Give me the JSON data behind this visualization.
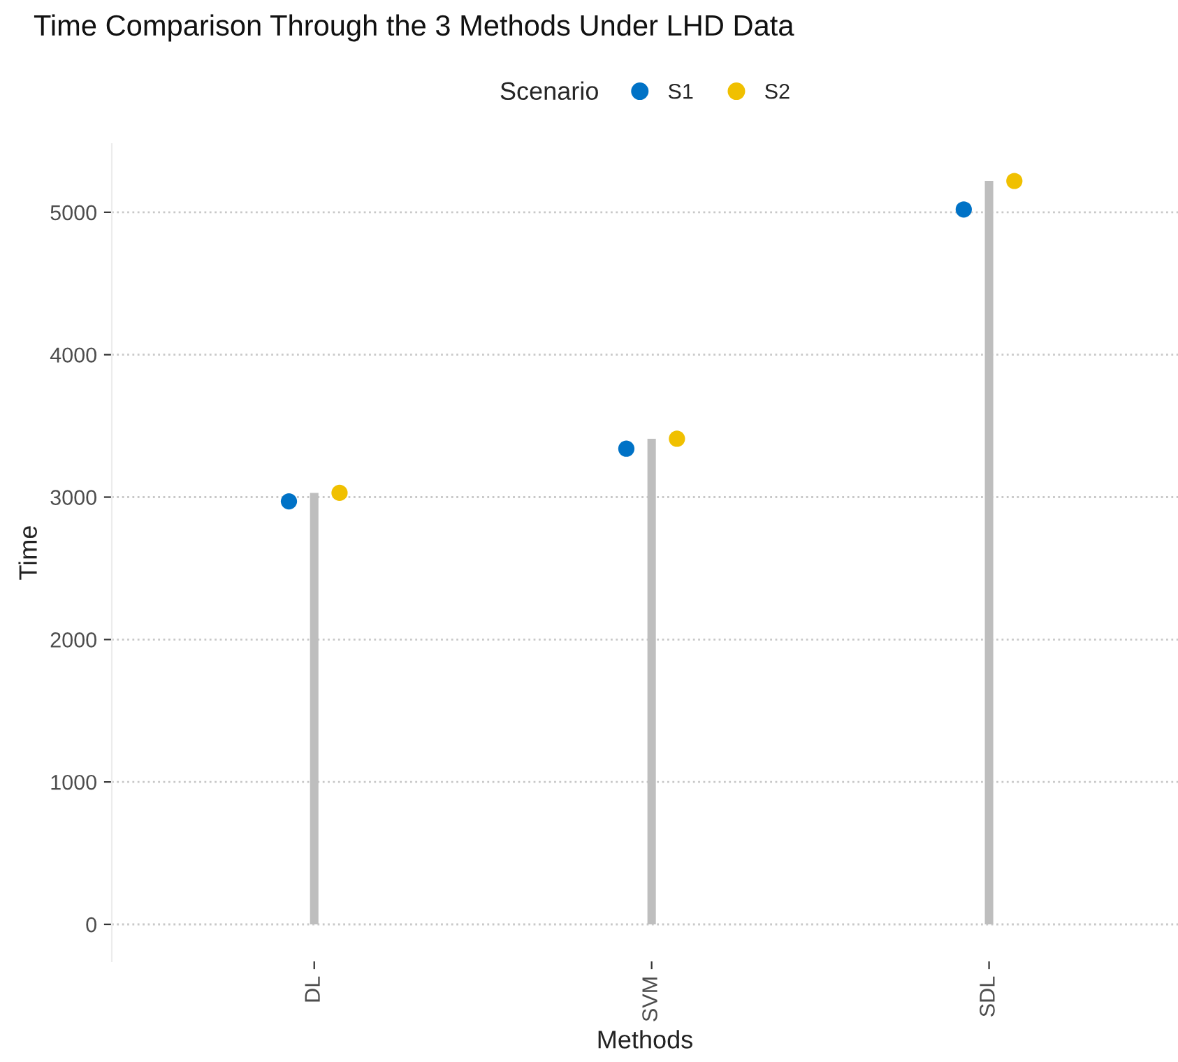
{
  "chart_data": {
    "type": "lollipop",
    "title": "Time Comparison Through the 3 Methods Under LHD Data",
    "xlabel": "Methods",
    "ylabel": "Time",
    "legend_title": "Scenario",
    "categories": [
      "DL",
      "SVM",
      "SDL"
    ],
    "series": [
      {
        "type": "bar",
        "color": "#bebebe",
        "values": [
          3030,
          3410,
          5220
        ]
      },
      {
        "type": "scatter",
        "name": "S1",
        "color": "#0072c6",
        "values": [
          2970,
          3340,
          5020
        ]
      },
      {
        "type": "scatter",
        "name": "S2",
        "color": "#f0c000",
        "values": [
          3030,
          3410,
          5220
        ]
      }
    ],
    "ylim": [
      -260,
      5480
    ],
    "yticks": [
      0,
      1000,
      2000,
      3000,
      4000,
      5000
    ],
    "grid": "y",
    "legend": "top",
    "marker": "circle"
  }
}
